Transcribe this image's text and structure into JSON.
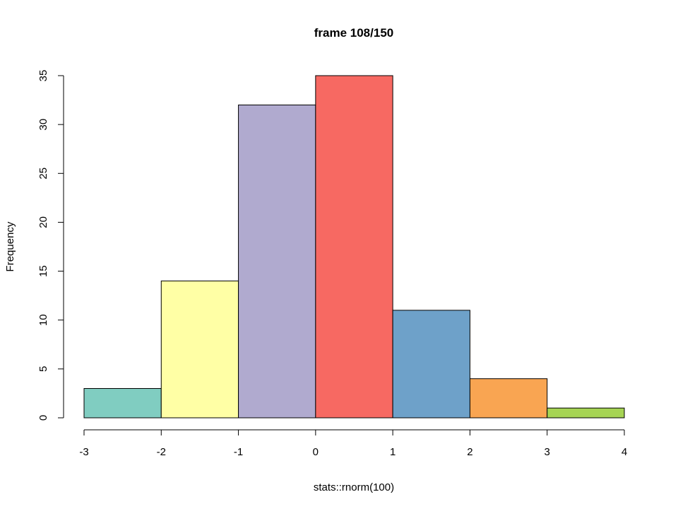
{
  "chart_data": {
    "type": "bar",
    "title": "frame 108/150",
    "xlabel": "stats::rnorm(100)",
    "ylabel": "Frequency",
    "bins": [
      {
        "x0": -3,
        "x1": -2,
        "count": 3,
        "color": "#80cdc1"
      },
      {
        "x0": -2,
        "x1": -1,
        "count": 14,
        "color": "#ffffa5"
      },
      {
        "x0": -1,
        "x1": 0,
        "count": 32,
        "color": "#b0aacf"
      },
      {
        "x0": 0,
        "x1": 1,
        "count": 35,
        "color": "#f76962"
      },
      {
        "x0": 1,
        "x1": 2,
        "count": 11,
        "color": "#6ea1c9"
      },
      {
        "x0": 2,
        "x1": 3,
        "count": 4,
        "color": "#f9a552"
      },
      {
        "x0": 3,
        "x1": 4,
        "count": 1,
        "color": "#a6d454"
      }
    ],
    "xlim": [
      -3,
      4
    ],
    "ylim": [
      0,
      35
    ],
    "xticks": [
      -3,
      -2,
      -1,
      0,
      1,
      2,
      3,
      4
    ],
    "yticks": [
      0,
      5,
      10,
      15,
      20,
      25,
      30,
      35
    ],
    "grid": false,
    "legend": "none"
  }
}
